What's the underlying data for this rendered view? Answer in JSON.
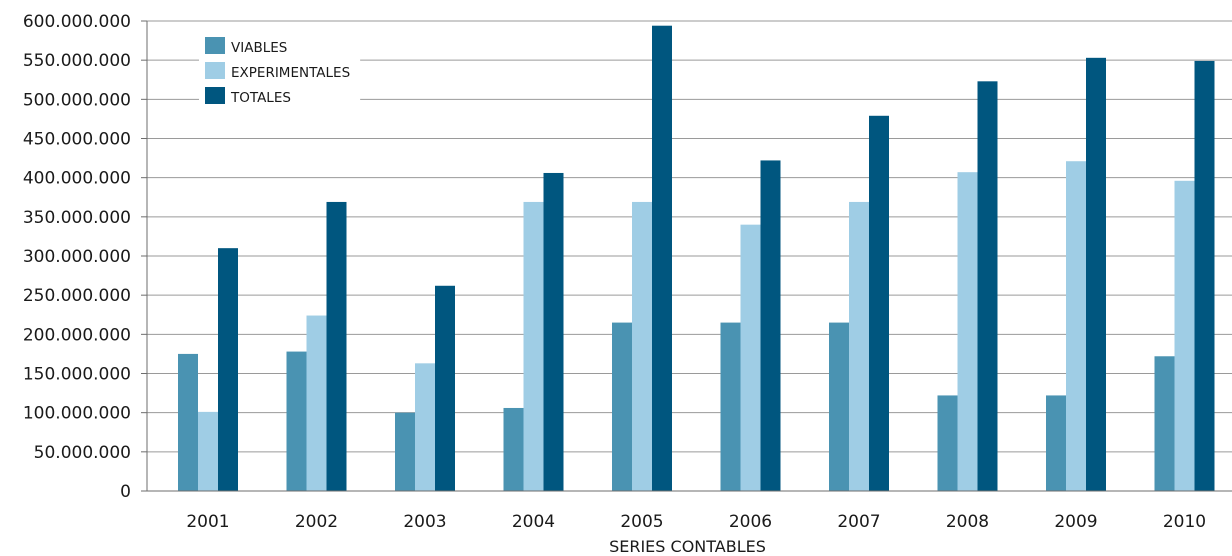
{
  "chart_data": {
    "type": "bar",
    "title": "",
    "xlabel": "SERIES CONTABLES",
    "ylabel": "",
    "ylim": [
      0,
      600000000
    ],
    "ytick_step": 50000000,
    "ytick_labels": [
      "0",
      "50.000.000",
      "100.000.000",
      "150.000.000",
      "200.000.000",
      "250.000.000",
      "300.000.000",
      "350.000.000",
      "400.000.000",
      "450.000.000",
      "500.000.000",
      "550.000.000",
      "600.000.000"
    ],
    "categories": [
      "2001",
      "2002",
      "2003",
      "2004",
      "2005",
      "2006",
      "2007",
      "2008",
      "2009",
      "2010"
    ],
    "series": [
      {
        "name": "VIABLES",
        "color": "#4a93b2",
        "values": [
          175000000,
          178000000,
          100000000,
          106000000,
          215000000,
          215000000,
          215000000,
          122000000,
          122000000,
          172000000
        ]
      },
      {
        "name": "EXPERIMENTALES",
        "color": "#9fcde5",
        "values": [
          101000000,
          224000000,
          163000000,
          369000000,
          369000000,
          340000000,
          369000000,
          407000000,
          421000000,
          396000000
        ]
      },
      {
        "name": "TOTALES",
        "color": "#00567f",
        "values": [
          310000000,
          369000000,
          262000000,
          406000000,
          594000000,
          422000000,
          479000000,
          523000000,
          553000000,
          549000000
        ]
      }
    ],
    "grid": true,
    "legend_position": "top-left"
  }
}
